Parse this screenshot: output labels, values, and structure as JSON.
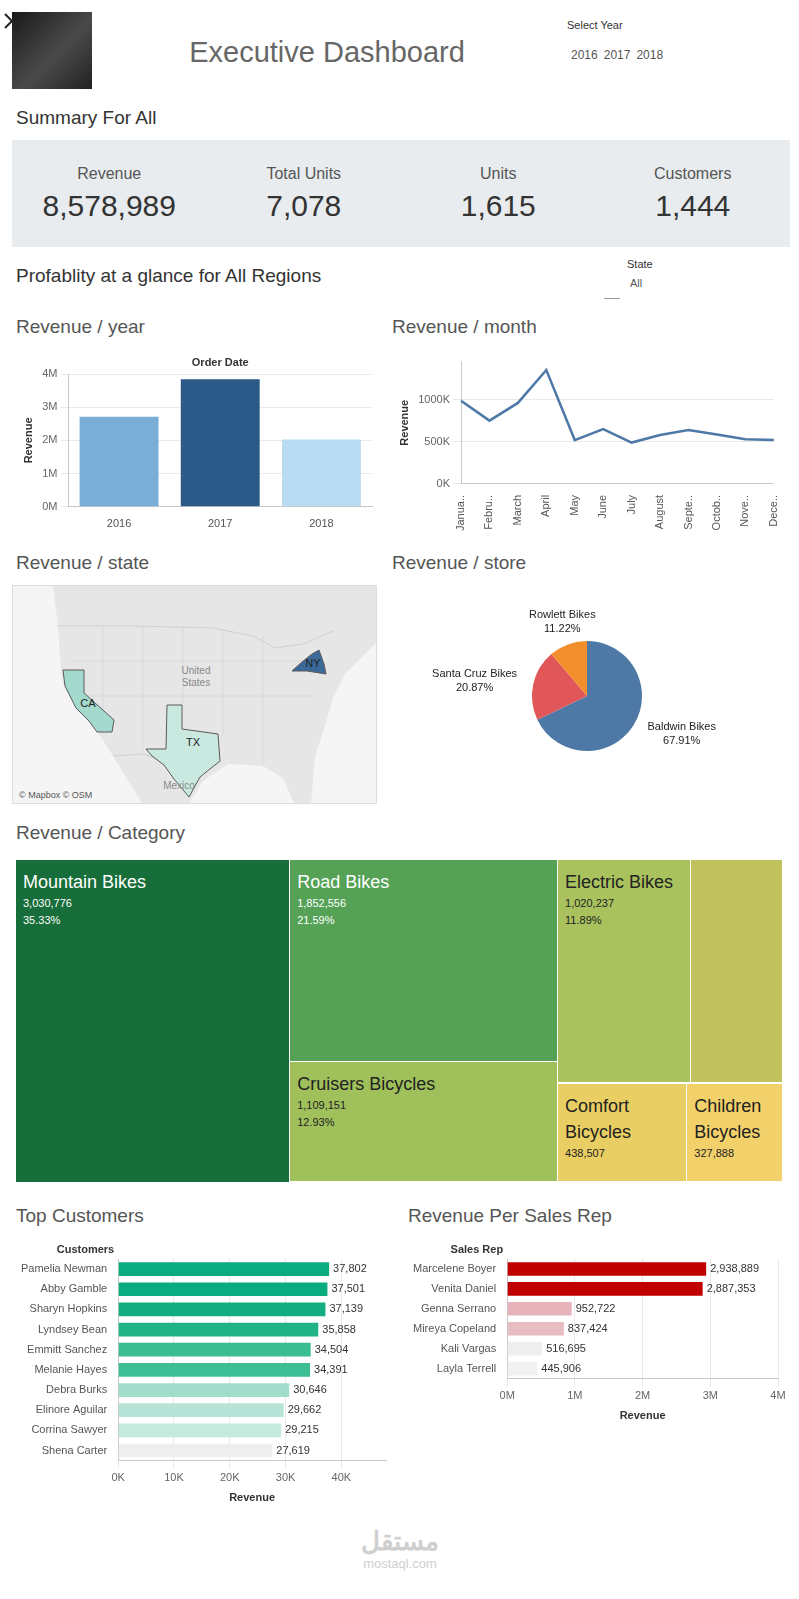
{
  "header": {
    "title": "Executive Dashboard",
    "year_selector": {
      "label": "Select Year",
      "options": [
        "2016",
        "2017",
        "2018"
      ]
    }
  },
  "summary": {
    "title": "Summary For All",
    "kpis": [
      {
        "label": "Revenue",
        "value": "8,578,989"
      },
      {
        "label": "Total Units",
        "value": "7,078"
      },
      {
        "label": "Units",
        "value": "1,615"
      },
      {
        "label": "Customers",
        "value": "1,444"
      }
    ]
  },
  "section": {
    "title": "Profablity at a glance for All Regions",
    "filter": {
      "label": "State",
      "value": "All"
    }
  },
  "map": {
    "title": "Revenue / state",
    "regions": [
      {
        "label": "CA",
        "color": "#a3dacd"
      },
      {
        "label": "TX",
        "color": "#c9e9e0"
      },
      {
        "label": "NY",
        "color": "#3b6a99"
      }
    ],
    "places": [
      "United States",
      "Mexico"
    ],
    "credit": "© Mapbox © OSM"
  },
  "chart_data": [
    {
      "type": "bar",
      "title": "Revenue / year",
      "x_label": "Order Date",
      "y_label": "Revenue",
      "categories": [
        "2016",
        "2017",
        "2018"
      ],
      "values": [
        2709484,
        3845515,
        2023989
      ],
      "colors": [
        "#7aaed6",
        "#2c5a88",
        "#b9dcf2"
      ],
      "ylim": [
        0,
        4000000
      ],
      "yticks": [
        {
          "value": 0,
          "label": "0M"
        },
        {
          "value": 1000000,
          "label": "1M"
        },
        {
          "value": 2000000,
          "label": "2M"
        },
        {
          "value": 3000000,
          "label": "3M"
        },
        {
          "value": 4000000,
          "label": "4M"
        }
      ],
      "grid": true
    },
    {
      "type": "line",
      "title": "Revenue / month",
      "y_label": "Revenue",
      "categories": [
        "Janua..",
        "Febru..",
        "March",
        "April",
        "May",
        "June",
        "July",
        "August",
        "Septe..",
        "Octob..",
        "Nove..",
        "Dece.."
      ],
      "values": [
        985000,
        750000,
        960000,
        1350000,
        520000,
        650000,
        490000,
        580000,
        640000,
        585000,
        530000,
        520000
      ],
      "color": "#4e79a7",
      "ylim": [
        0,
        1450000
      ],
      "yticks": [
        {
          "value": 0,
          "label": "0K"
        },
        {
          "value": 500000,
          "label": "500K"
        },
        {
          "value": 1000000,
          "label": "1000K"
        }
      ],
      "grid": true
    },
    {
      "type": "pie",
      "title": "Revenue / store",
      "categories": [
        "Baldwin Bikes",
        "Santa Cruz Bikes",
        "Rowlett Bikes"
      ],
      "values": [
        67.91,
        20.87,
        11.22
      ],
      "value_labels": [
        "67.91%",
        "20.87%",
        "11.22%"
      ],
      "colors": [
        "#4e79a7",
        "#e15759",
        "#f28e2b"
      ],
      "data_labels": true
    },
    {
      "type": "treemap",
      "title": "Revenue / Category",
      "categories": [
        "Mountain Bikes",
        "Road Bikes",
        "Cruisers Bicycles",
        "Electric Bikes",
        null,
        "Comfort Bicycles",
        "Children Bicycles"
      ],
      "values": [
        3030776,
        1852556,
        1109151,
        1020237,
        711011,
        438507,
        327888
      ],
      "value_labels": [
        "3,030,776",
        "1,852,556",
        "1,109,151",
        "1,020,237",
        null,
        "438,507",
        "327,888"
      ],
      "percent_labels": [
        "35.33%",
        "21.59%",
        "12.93%",
        "11.89%",
        null,
        null,
        null
      ],
      "colors": [
        "#176e3a",
        "#55a257",
        "#9fc05a",
        "#a9c25d",
        "#c0c25e",
        "#e9cf63",
        "#f2d16a"
      ],
      "data_labels": true
    },
    {
      "type": "bar",
      "orientation": "horizontal",
      "title": "Top Customers",
      "y_label": "Customers",
      "x_label": "Revenue",
      "categories": [
        "Pamelia Newman",
        "Abby Gamble",
        "Sharyn Hopkins",
        "Lyndsey Bean",
        "Emmitt Sanchez",
        "Melanie Hayes",
        "Debra Burks",
        "Elinore Aguilar",
        "Corrina Sawyer",
        "Shena Carter"
      ],
      "values": [
        37802,
        37501,
        37139,
        35858,
        34504,
        34391,
        30646,
        29662,
        29215,
        27619
      ],
      "value_labels": [
        "37,802",
        "37,501",
        "37,139",
        "35,858",
        "34,504",
        "34,391",
        "30,646",
        "29,662",
        "29,215",
        "27,619"
      ],
      "colors": [
        "#0aab7e",
        "#0aab7e",
        "#12ad80",
        "#20b386",
        "#3bbd92",
        "#3dbd93",
        "#a2dccb",
        "#b7e4d6",
        "#c4e9dd",
        "#eeeeee"
      ],
      "xlim": [
        0,
        48000
      ],
      "xticks": [
        {
          "value": 0,
          "label": "0K"
        },
        {
          "value": 10000,
          "label": "10K"
        },
        {
          "value": 20000,
          "label": "20K"
        },
        {
          "value": 30000,
          "label": "30K"
        },
        {
          "value": 40000,
          "label": "40K"
        }
      ],
      "grid": true,
      "data_labels": true
    },
    {
      "type": "bar",
      "orientation": "horizontal",
      "title": "Revenue Per Sales Rep",
      "y_label": "Sales Rep",
      "x_label": "Revenue",
      "categories": [
        "Marcelene Boyer",
        "Venita Daniel",
        "Genna Serrano",
        "Mireya Copeland",
        "Kali Vargas",
        "Layla Terrell"
      ],
      "values": [
        2938889,
        2887353,
        952722,
        837424,
        516695,
        445906
      ],
      "value_labels": [
        "2,938,889",
        "2,887,353",
        "952,722",
        "837,424",
        "516,695",
        "445,906"
      ],
      "colors": [
        "#c00000",
        "#c00000",
        "#e6b3bb",
        "#e8bcc3",
        "#eeeeee",
        "#f1f1f1"
      ],
      "xlim": [
        0,
        4000000
      ],
      "xticks": [
        {
          "value": 0,
          "label": "0M"
        },
        {
          "value": 1000000,
          "label": "1M"
        },
        {
          "value": 2000000,
          "label": "2M"
        },
        {
          "value": 3000000,
          "label": "3M"
        },
        {
          "value": 4000000,
          "label": "4M"
        }
      ],
      "grid": true,
      "data_labels": true
    }
  ],
  "watermark": [
    "مستقل",
    "mostaql.com"
  ]
}
